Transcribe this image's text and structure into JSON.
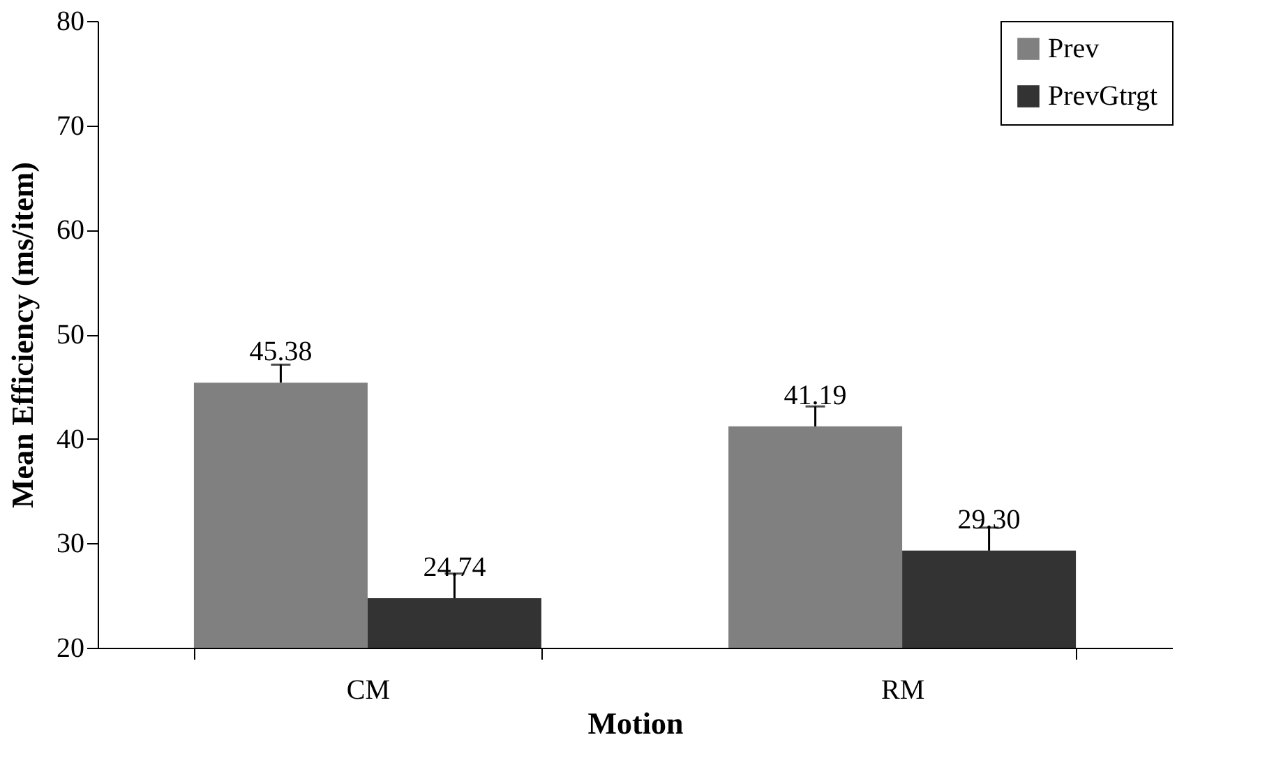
{
  "chart_data": {
    "type": "bar",
    "xlabel": "Motion",
    "ylabel": "Mean Efficiency (ms/item)",
    "categories": [
      "CM",
      "RM"
    ],
    "series": [
      {
        "name": "Prev",
        "color": "#808080",
        "values": [
          45.38,
          41.19
        ],
        "value_labels": [
          "45.38",
          "41.19"
        ],
        "errors": [
          [
            45.38,
            47.1
          ],
          [
            41.19,
            43.1
          ]
        ]
      },
      {
        "name": "PrevGtrgt",
        "color": "#333333",
        "values": [
          24.74,
          29.3
        ],
        "value_labels": [
          "24.74",
          "29.30"
        ],
        "errors": [
          [
            24.74,
            27.1
          ],
          [
            29.3,
            31.5
          ]
        ]
      }
    ],
    "ylim": [
      20,
      80
    ],
    "yticks": [
      20,
      30,
      40,
      50,
      60,
      70,
      80
    ],
    "grid": false,
    "legend": "top right"
  }
}
